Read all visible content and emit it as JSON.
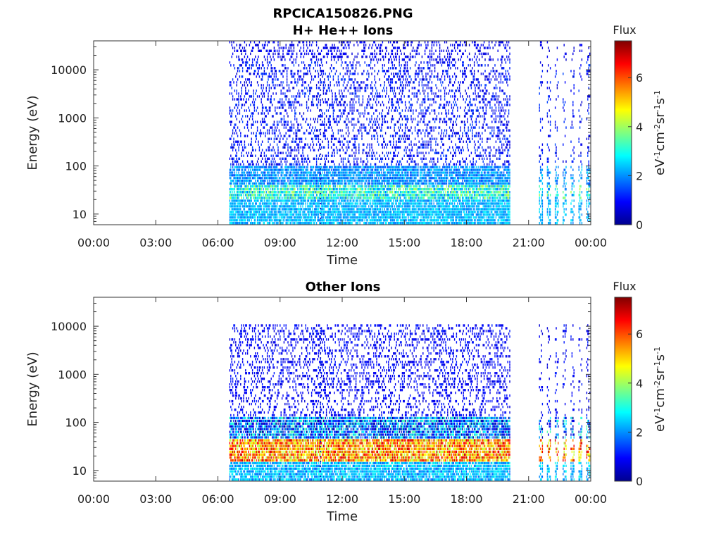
{
  "figure": {
    "title_line1": "RPCICA150826.PNG",
    "title_line2": "H+ He++ Ions"
  },
  "chart_data": [
    {
      "type": "heatmap",
      "title": "H+ He++ Ions",
      "xlabel": "Time",
      "ylabel": "Energy (eV)",
      "xticks": [
        "00:00",
        "03:00",
        "06:00",
        "09:00",
        "12:00",
        "15:00",
        "18:00",
        "21:00",
        "00:00"
      ],
      "xlim_hours": [
        0,
        24
      ],
      "yscale": "log",
      "yticks": [
        10,
        100,
        1000,
        10000
      ],
      "ytick_labels": [
        "10",
        "100",
        "1000",
        "10000"
      ],
      "ylim": [
        6,
        40000
      ],
      "colorbar": {
        "label": "Flux",
        "units": "eV-1cm-2sr-1s-1",
        "range": [
          0,
          7.5
        ],
        "ticks": [
          0,
          2,
          4,
          6
        ],
        "colormap": "jet"
      },
      "data_intervals_hours": [
        [
          6.55,
          20.1
        ],
        [
          21.5,
          24.0
        ]
      ],
      "spike_time_hours": 10.95,
      "dense_band_top_energy_ev": 15000,
      "bands": [
        {
          "energy_range_ev": [
            6,
            20
          ],
          "typical_flux": 2.3,
          "peak_flux": 2.8
        },
        {
          "energy_range_ev": [
            20,
            40
          ],
          "typical_flux": 3.0,
          "peak_flux": 4.2
        },
        {
          "energy_range_ev": [
            40,
            100
          ],
          "typical_flux": 2.0,
          "peak_flux": 2.6
        },
        {
          "energy_range_ev": [
            100,
            15000
          ],
          "typical_flux": 1.0,
          "peak_flux": 1.5
        },
        {
          "energy_range_ev": [
            15000,
            40000
          ],
          "typical_flux": 0.8,
          "peak_flux": 1.1
        }
      ]
    },
    {
      "type": "heatmap",
      "title": "Other Ions",
      "xlabel": "Time",
      "ylabel": "Energy (eV)",
      "xticks": [
        "00:00",
        "03:00",
        "06:00",
        "09:00",
        "12:00",
        "15:00",
        "18:00",
        "21:00",
        "00:00"
      ],
      "xlim_hours": [
        0,
        24
      ],
      "yscale": "log",
      "yticks": [
        10,
        100,
        1000,
        10000
      ],
      "ytick_labels": [
        "10",
        "100",
        "1000",
        "10000"
      ],
      "ylim": [
        6,
        40000
      ],
      "colorbar": {
        "label": "Flux",
        "units": "eV-1cm-2sr-1s-1",
        "range": [
          0,
          7.5
        ],
        "ticks": [
          0,
          2,
          4,
          6
        ],
        "colormap": "jet"
      },
      "data_intervals_hours": [
        [
          6.55,
          20.1
        ],
        [
          21.5,
          24.0
        ]
      ],
      "spike_time_hours": 10.95,
      "dense_band_top_energy_ev": 11000,
      "bands": [
        {
          "energy_range_ev": [
            6,
            15
          ],
          "typical_flux": 2.3,
          "peak_flux": 3.0
        },
        {
          "energy_range_ev": [
            15,
            45
          ],
          "typical_flux": 5.5,
          "peak_flux": 7.0
        },
        {
          "energy_range_ev": [
            45,
            130
          ],
          "typical_flux": 1.8,
          "peak_flux": 3.5
        },
        {
          "energy_range_ev": [
            130,
            11000
          ],
          "typical_flux": 0.9,
          "peak_flux": 1.2
        }
      ]
    }
  ]
}
